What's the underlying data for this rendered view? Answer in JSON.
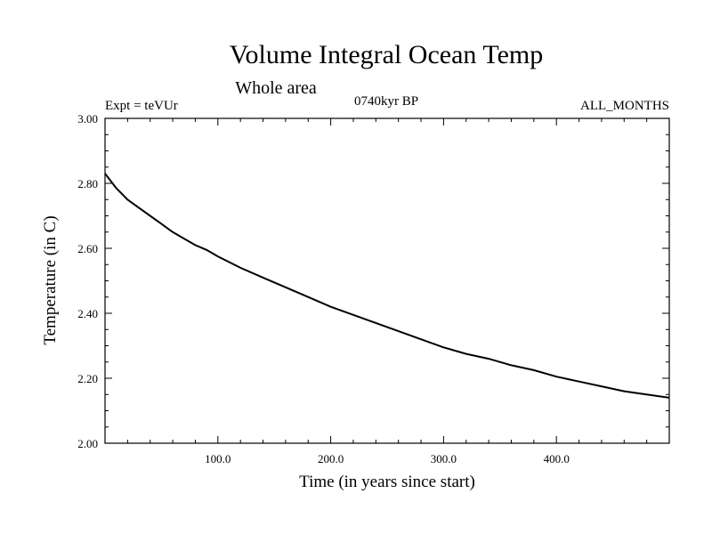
{
  "chart_data": {
    "type": "line",
    "title": "Volume Integral Ocean Temp",
    "subtitle": "Whole area",
    "annotations": {
      "left": "Expt = teVUr",
      "center": "0740kyr BP",
      "right": "ALL_MONTHS"
    },
    "xlabel": "Time (in years since start)",
    "ylabel": "Temperature (in C)",
    "xlim": [
      0,
      500
    ],
    "ylim": [
      2.0,
      3.0
    ],
    "x_ticks": [
      100,
      200,
      300,
      400
    ],
    "x_tick_labels": [
      "100.0",
      "200.0",
      "300.0",
      "400.0"
    ],
    "y_ticks": [
      2.0,
      2.2,
      2.4,
      2.6,
      2.8,
      3.0
    ],
    "y_tick_labels": [
      "2.00",
      "2.20",
      "2.40",
      "2.60",
      "2.80",
      "3.00"
    ],
    "grid": false,
    "series": [
      {
        "color": "#000000",
        "x": [
          0,
          10,
          20,
          30,
          40,
          50,
          60,
          70,
          80,
          90,
          100,
          120,
          140,
          160,
          180,
          200,
          220,
          240,
          260,
          280,
          300,
          320,
          340,
          360,
          380,
          400,
          420,
          440,
          460,
          480,
          500
        ],
        "y": [
          2.83,
          2.785,
          2.75,
          2.725,
          2.7,
          2.675,
          2.65,
          2.63,
          2.61,
          2.595,
          2.575,
          2.54,
          2.51,
          2.48,
          2.45,
          2.42,
          2.395,
          2.37,
          2.345,
          2.32,
          2.295,
          2.275,
          2.26,
          2.24,
          2.225,
          2.205,
          2.19,
          2.175,
          2.16,
          2.15,
          2.14
        ]
      }
    ]
  }
}
